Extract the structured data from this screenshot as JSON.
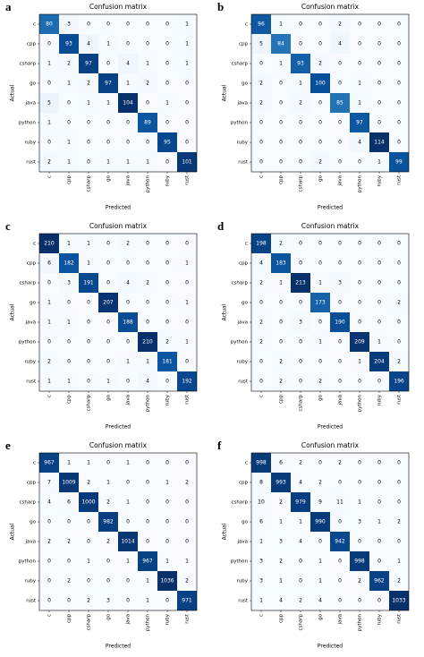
{
  "chart_data": [
    {
      "type": "heatmap",
      "label": "a",
      "title": "Confusion matrix",
      "xlabel": "Predicted",
      "ylabel": "Actual",
      "colormap": "Blues",
      "x": [
        "c",
        "cpp",
        "csharp",
        "go",
        "java",
        "python",
        "ruby",
        "rust"
      ],
      "y": [
        "c",
        "cpp",
        "csharp",
        "go",
        "java",
        "python",
        "ruby",
        "rust"
      ],
      "values": [
        [
          80,
          3,
          0,
          0,
          0,
          0,
          0,
          1
        ],
        [
          0,
          93,
          4,
          1,
          0,
          0,
          0,
          1
        ],
        [
          1,
          2,
          97,
          0,
          4,
          1,
          0,
          1
        ],
        [
          0,
          1,
          2,
          97,
          1,
          2,
          0,
          0
        ],
        [
          5,
          0,
          1,
          1,
          104,
          0,
          1,
          0
        ],
        [
          1,
          0,
          0,
          0,
          0,
          89,
          0,
          0
        ],
        [
          0,
          1,
          0,
          0,
          0,
          0,
          95,
          0
        ],
        [
          2,
          1,
          0,
          1,
          1,
          1,
          0,
          101
        ]
      ]
    },
    {
      "type": "heatmap",
      "label": "b",
      "title": "Confusion matrix",
      "xlabel": "Predicted",
      "ylabel": "Actual",
      "colormap": "Blues",
      "x": [
        "c",
        "cpp",
        "csharp",
        "go",
        "java",
        "python",
        "ruby",
        "rust"
      ],
      "y": [
        "c",
        "cpp",
        "csharp",
        "go",
        "java",
        "python",
        "ruby",
        "rust"
      ],
      "values": [
        [
          96,
          1,
          0,
          0,
          2,
          0,
          0,
          0
        ],
        [
          5,
          84,
          0,
          0,
          4,
          0,
          0,
          0
        ],
        [
          0,
          1,
          93,
          2,
          0,
          0,
          0,
          0
        ],
        [
          2,
          0,
          1,
          100,
          0,
          1,
          0,
          0
        ],
        [
          2,
          0,
          2,
          0,
          85,
          1,
          0,
          0
        ],
        [
          0,
          0,
          0,
          0,
          0,
          97,
          0,
          0
        ],
        [
          0,
          0,
          0,
          0,
          0,
          4,
          114,
          0
        ],
        [
          0,
          0,
          0,
          2,
          0,
          0,
          1,
          99
        ]
      ]
    },
    {
      "type": "heatmap",
      "label": "c",
      "title": "Confusion matrix",
      "xlabel": "Predicted",
      "ylabel": "Actual",
      "colormap": "Blues",
      "x": [
        "c",
        "cpp",
        "csharp",
        "go",
        "java",
        "python",
        "ruby",
        "rust"
      ],
      "y": [
        "c",
        "cpp",
        "csharp",
        "go",
        "java",
        "python",
        "ruby",
        "rust"
      ],
      "values": [
        [
          210,
          1,
          1,
          0,
          2,
          0,
          0,
          0
        ],
        [
          6,
          182,
          1,
          0,
          0,
          0,
          0,
          1
        ],
        [
          0,
          3,
          191,
          0,
          4,
          2,
          0,
          0
        ],
        [
          1,
          0,
          0,
          207,
          0,
          0,
          0,
          1
        ],
        [
          1,
          1,
          0,
          0,
          188,
          0,
          0,
          0
        ],
        [
          0,
          0,
          0,
          0,
          0,
          210,
          2,
          1
        ],
        [
          2,
          0,
          0,
          0,
          1,
          1,
          181,
          0
        ],
        [
          1,
          1,
          0,
          1,
          0,
          4,
          0,
          192
        ]
      ]
    },
    {
      "type": "heatmap",
      "label": "d",
      "title": "Confusion matrix",
      "xlabel": "Predicted",
      "ylabel": "Actual",
      "colormap": "Blues",
      "x": [
        "c",
        "cpp",
        "csharp",
        "go",
        "java",
        "python",
        "ruby",
        "rust"
      ],
      "y": [
        "c",
        "cpp",
        "csharp",
        "go",
        "java",
        "python",
        "ruby",
        "rust"
      ],
      "values": [
        [
          198,
          2,
          0,
          0,
          0,
          0,
          0,
          0
        ],
        [
          4,
          183,
          0,
          0,
          0,
          0,
          0,
          0
        ],
        [
          2,
          1,
          213,
          1,
          3,
          0,
          0,
          0
        ],
        [
          0,
          0,
          0,
          173,
          0,
          0,
          0,
          2
        ],
        [
          2,
          0,
          3,
          0,
          190,
          0,
          0,
          0
        ],
        [
          2,
          0,
          0,
          1,
          0,
          209,
          1,
          0
        ],
        [
          0,
          2,
          0,
          0,
          0,
          1,
          204,
          2
        ],
        [
          0,
          2,
          0,
          2,
          0,
          0,
          0,
          196
        ]
      ]
    },
    {
      "type": "heatmap",
      "label": "e",
      "title": "Confusion matrix",
      "xlabel": "Predicted",
      "ylabel": "Actual",
      "colormap": "Blues",
      "x": [
        "c",
        "cpp",
        "csharp",
        "go",
        "java",
        "python",
        "ruby",
        "rust"
      ],
      "y": [
        "c",
        "cpp",
        "csharp",
        "go",
        "java",
        "python",
        "ruby",
        "rust"
      ],
      "values": [
        [
          967,
          1,
          1,
          0,
          1,
          0,
          0,
          0
        ],
        [
          7,
          1009,
          2,
          1,
          0,
          0,
          1,
          2
        ],
        [
          4,
          6,
          1000,
          2,
          1,
          0,
          0,
          0
        ],
        [
          0,
          0,
          0,
          982,
          0,
          0,
          0,
          0
        ],
        [
          2,
          2,
          0,
          2,
          1014,
          0,
          0,
          0
        ],
        [
          0,
          0,
          1,
          0,
          1,
          967,
          1,
          1
        ],
        [
          0,
          2,
          0,
          0,
          0,
          1,
          1036,
          2
        ],
        [
          0,
          0,
          2,
          3,
          0,
          1,
          0,
          971
        ]
      ]
    },
    {
      "type": "heatmap",
      "label": "f",
      "title": "Confusion matrix",
      "xlabel": "Predicted",
      "ylabel": "Actual",
      "colormap": "Blues",
      "x": [
        "c",
        "cpp",
        "csharp",
        "go",
        "java",
        "python",
        "ruby",
        "rust"
      ],
      "y": [
        "c",
        "cpp",
        "csharp",
        "go",
        "java",
        "python",
        "ruby",
        "rust"
      ],
      "values": [
        [
          998,
          6,
          2,
          0,
          2,
          0,
          0,
          0
        ],
        [
          8,
          993,
          4,
          2,
          0,
          0,
          0,
          0
        ],
        [
          10,
          2,
          979,
          9,
          11,
          1,
          0,
          0
        ],
        [
          6,
          1,
          1,
          990,
          0,
          3,
          1,
          2
        ],
        [
          1,
          3,
          4,
          0,
          942,
          0,
          0,
          0
        ],
        [
          3,
          2,
          0,
          1,
          0,
          998,
          0,
          1
        ],
        [
          3,
          1,
          0,
          1,
          0,
          2,
          962,
          2
        ],
        [
          1,
          4,
          2,
          4,
          0,
          0,
          0,
          1033
        ]
      ]
    }
  ]
}
